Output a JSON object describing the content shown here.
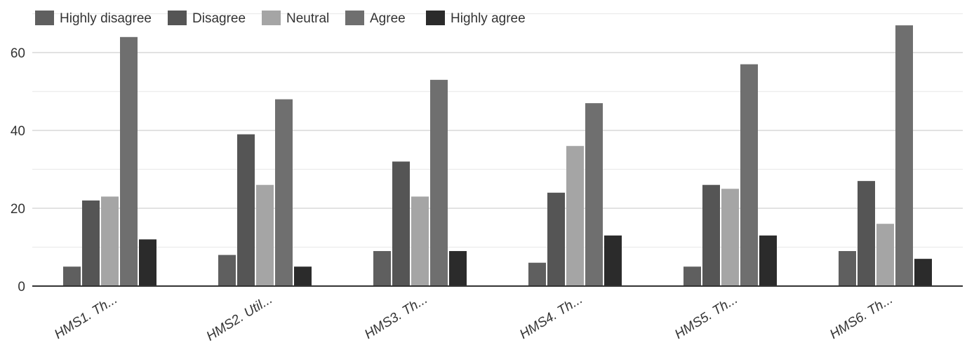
{
  "chart_data": {
    "type": "bar",
    "categories": [
      "HMS1. Th...",
      "HMS2. Util...",
      "HMS3. Th...",
      "HMS4. Th...",
      "HMS5. Th...",
      "HMS6. Th..."
    ],
    "series": [
      {
        "name": "Highly disagree",
        "color": "#5f5f5f",
        "values": [
          5,
          8,
          9,
          6,
          5,
          9
        ]
      },
      {
        "name": "Disagree",
        "color": "#555555",
        "values": [
          22,
          39,
          32,
          24,
          26,
          27
        ]
      },
      {
        "name": "Neutral",
        "color": "#a5a5a5",
        "values": [
          23,
          26,
          23,
          36,
          25,
          16
        ]
      },
      {
        "name": "Agree",
        "color": "#6f6f6f",
        "values": [
          64,
          48,
          53,
          47,
          57,
          67
        ]
      },
      {
        "name": "Highly agree",
        "color": "#2b2b2b",
        "values": [
          12,
          5,
          9,
          13,
          13,
          7
        ]
      }
    ],
    "yticks": [
      0,
      20,
      40,
      60
    ],
    "ylim": [
      0,
      70
    ],
    "grid": true,
    "legend_position": "top-left",
    "title": "",
    "xlabel": "",
    "ylabel": ""
  }
}
